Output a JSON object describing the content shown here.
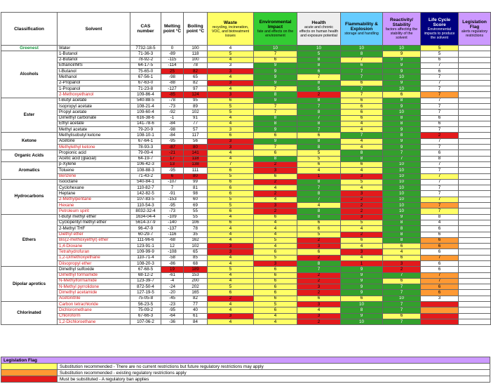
{
  "headers": {
    "classification": "Classification",
    "solvent": "Solvent",
    "cas": "CAS number",
    "mp": "Melting point °C",
    "bp": "Boiling point °C",
    "waste": {
      "title": "Waste",
      "sub": "recycling, incineration, VOC, and biotreatment issues"
    },
    "env": {
      "title": "Environmental Impact",
      "sub": "fate and effects on the environment"
    },
    "health": {
      "title": "Health",
      "sub": "acute and chronic effects on human health and exposure potential"
    },
    "flam": {
      "title": "Flammability & Explosion",
      "sub": "storage and handling"
    },
    "react": {
      "title": "Reactivity/ Stability",
      "sub": "factors affecting the stability of the solvent"
    },
    "life": {
      "title": "Life Cycle Score",
      "sub": "Environmental impacts to produce the solvent"
    },
    "leg": {
      "title": "Legislation Flag",
      "sub": "alerts regulatory restrictions"
    }
  },
  "colors": {
    "red": "#e31a1c",
    "yellow": "#ffff66",
    "green": "#33a02c",
    "orange": "#ff9933",
    "purple": "#cc99ff",
    "navy": "#000080"
  },
  "groups": [
    {
      "name": "Greenest",
      "rows": [
        [
          "Water",
          "7732-18-5",
          "0",
          "100",
          "4",
          "10",
          "10",
          "10",
          "10",
          "5",
          "",
          "",
          "g",
          "g",
          "g",
          "g",
          "y",
          "w"
        ]
      ]
    },
    {
      "name": "Alcohols",
      "rows": [
        [
          "1-Butanol",
          "71-36-3",
          "-89",
          "118",
          "5",
          "7",
          "5",
          "8",
          "9",
          "5",
          "",
          "y",
          "y",
          "g",
          "g",
          "y",
          "w"
        ],
        [
          "2-Butanol",
          "78-92-2",
          "-115",
          "100",
          "4",
          "6",
          "8",
          "7",
          "9",
          "6",
          "",
          "y",
          "y",
          "g",
          "y",
          "g",
          "w"
        ],
        [
          "Ethanol/IMS",
          "64-17-5",
          "-114",
          "78",
          "3",
          "9",
          "8",
          "6",
          "9",
          "7",
          "",
          "w",
          "g",
          "g",
          "g",
          "g",
          "w"
        ],
        [
          "t-Butanol",
          "75-65-0",
          "25",
          "82",
          "3",
          "9",
          "6",
          "7",
          "9",
          "6",
          "r",
          "r",
          "g",
          "g",
          "g",
          "g",
          "w"
        ],
        [
          "Methanol",
          "67-56-1",
          "-98",
          "65",
          "4",
          "9",
          "7",
          "7",
          "10",
          "7",
          "",
          "y",
          "g",
          "y",
          "g",
          "g",
          "w"
        ],
        [
          "2-Propanol",
          "67-63-0",
          "-88",
          "82",
          "3",
          "9",
          "8",
          "6",
          "9",
          "7",
          "",
          "r",
          "g",
          "g",
          "y",
          "g",
          "w"
        ],
        [
          "1-Propanol",
          "71-23-8",
          "-127",
          "97",
          "4",
          "7",
          "5",
          "7",
          "10",
          "7",
          "",
          "y",
          "y",
          "g",
          "g",
          "g",
          "w"
        ],
        [
          "2-Methoxyethanol",
          "109-86-4",
          "-85",
          "124",
          "3",
          "8",
          "2",
          "7",
          "6",
          "7",
          "r",
          "r",
          "g",
          "r",
          "y",
          "y",
          "o"
        ]
      ]
    },
    {
      "name": "Ester",
      "rows": [
        [
          "t-Butyl acetate",
          "540-88-5",
          "-78",
          "95",
          "6",
          "9",
          "8",
          "6",
          "8",
          "7",
          "",
          "y",
          "g",
          "g",
          "y",
          "g",
          "w"
        ],
        [
          "Isopropyl acetate",
          "108-21-4",
          "-73",
          "89",
          "5",
          "7",
          "7",
          "6",
          "9",
          "7",
          "",
          "y",
          "y",
          "g",
          "y",
          "g",
          "w"
        ],
        [
          "Propyl acetate",
          "109-60-4",
          "-92",
          "102",
          "5",
          "7",
          "8",
          "6",
          "10",
          "7",
          "",
          "y",
          "y",
          "g",
          "y",
          "g",
          "w"
        ],
        [
          "Dimethyl carbonate",
          "616-38-6",
          "-1",
          "91",
          "4",
          "8",
          "7",
          "6",
          "8",
          "6",
          "",
          "y",
          "g",
          "g",
          "y",
          "g",
          "w"
        ],
        [
          "Ethyl acetate",
          "141-78-6",
          "-84",
          "77",
          "4",
          "8",
          "8",
          "4",
          "8",
          "6",
          "",
          "y",
          "g",
          "g",
          "y",
          "g",
          "w"
        ],
        [
          "Methyl acetate",
          "79-20-9",
          "-98",
          "57",
          "3",
          "9",
          "7",
          "4",
          "9",
          "7",
          "",
          "y",
          "g",
          "g",
          "y",
          "g",
          "w"
        ]
      ]
    },
    {
      "name": "Ketone",
      "rows": [
        [
          "Methylisobutyl ketone",
          "108-10-1",
          "-84",
          "117",
          "6",
          "6",
          "6",
          "7",
          "8",
          "2",
          "",
          "y",
          "y",
          "y",
          "g",
          "g",
          "r"
        ],
        [
          "Acetone",
          "67-64-1",
          "-95",
          "56",
          "3",
          "9",
          "8",
          "4",
          "9",
          "7",
          "",
          "r",
          "g",
          "g",
          "y",
          "g",
          "w"
        ],
        [
          "Methylethyl ketone",
          "78-93-3",
          "-87",
          "80",
          "3",
          "7",
          "8",
          "4",
          "9",
          "7",
          "r",
          "r",
          "y",
          "g",
          "y",
          "g",
          "w"
        ]
      ]
    },
    {
      "name": "Organic Acids",
      "rows": [
        [
          "Propionic acid",
          "79-09-4",
          "-21",
          "141",
          "4",
          "6",
          "5",
          "8",
          "7",
          "6",
          "r",
          "y",
          "y",
          "y",
          "g",
          "g",
          "w"
        ],
        [
          "Acetic acid (glacial)",
          "64-19-7",
          "17",
          "118",
          "4",
          "8",
          "5",
          "8",
          "7",
          "8",
          "r",
          "y",
          "g",
          "y",
          "g",
          "g",
          "w"
        ]
      ]
    },
    {
      "name": "Aromatics",
      "rows": [
        [
          "p-Xylene",
          "106-42-3",
          "13",
          "138",
          "7",
          "2",
          "6",
          "6",
          "10",
          "7",
          "r",
          "y",
          "r",
          "y",
          "y",
          "g",
          "w"
        ],
        [
          "Toluene",
          "108-88-3",
          "-95",
          "111",
          "6",
          "3",
          "4",
          "4",
          "10",
          "7",
          "",
          "y",
          "r",
          "y",
          "y",
          "g",
          "w"
        ],
        [
          "Benzene",
          "71-43-2",
          "6",
          "80",
          "5",
          "6",
          "1",
          "3",
          "10",
          "7",
          "r",
          "y",
          "y",
          "r",
          "r",
          "g",
          "y"
        ]
      ]
    },
    {
      "name": "Hydrocarbons",
      "rows": [
        [
          "Isooctane",
          "540-84-1",
          "-107",
          "99",
          "6",
          "2",
          "8",
          "5",
          "10",
          "7",
          "",
          "y",
          "r",
          "g",
          "y",
          "g",
          "w"
        ],
        [
          "Cyclohexane",
          "110-82-7",
          "7",
          "81",
          "6",
          "4",
          "7",
          "4",
          "10",
          "7",
          "",
          "y",
          "y",
          "g",
          "y",
          "g",
          "w"
        ],
        [
          "Heptane",
          "142-82-5",
          "-91",
          "98",
          "6",
          "2",
          "8",
          "3",
          "10",
          "7",
          "",
          "y",
          "r",
          "g",
          "r",
          "g",
          "w"
        ],
        [
          "2-Methylpentane",
          "107-83-5",
          "-153",
          "60",
          "5",
          "4",
          "7",
          "2",
          "10",
          "7",
          "",
          "y",
          "y",
          "g",
          "r",
          "g",
          "y"
        ],
        [
          "Hexane",
          "110-54-3",
          "-95",
          "69",
          "5",
          "3",
          "4",
          "2",
          "10",
          "7",
          "",
          "y",
          "r",
          "y",
          "r",
          "g",
          "o"
        ],
        [
          "Petroleum spirit",
          "8032-32-4",
          "-73",
          "55",
          "6",
          "2",
          "8",
          "2",
          "10",
          "7",
          "",
          "y",
          "r",
          "g",
          "r",
          "g",
          "y"
        ]
      ]
    },
    {
      "name": "Ethers",
      "rows": [
        [
          "t-Butyl methyl ether",
          "1634-04-4",
          "-109",
          "55",
          "4",
          "6",
          "8",
          "3",
          "9",
          "8",
          "",
          "y",
          "y",
          "g",
          "r",
          "g",
          "w"
        ],
        [
          "Cyclopentyl methyl ether",
          "5614-37-9",
          "-140",
          "106",
          "6",
          "4",
          "6",
          "5",
          "8",
          "4",
          "",
          "y",
          "y",
          "y",
          "y",
          "g",
          "w"
        ],
        [
          "2-Methyl THF",
          "96-47-9",
          "-137",
          "78",
          "4",
          "4",
          "6",
          "4",
          "8",
          "6",
          "",
          "y",
          "y",
          "y",
          "y",
          "g",
          "w"
        ],
        [
          "Diethyl ether",
          "60-29-7",
          "-116",
          "35",
          "4",
          "4",
          "5",
          "2",
          "8",
          "6",
          "",
          "y",
          "y",
          "y",
          "r",
          "g",
          "w"
        ],
        [
          "Bis(2-methoxyethyl) ether",
          "111-96-6",
          "-68",
          "162",
          "4",
          "5",
          "2",
          "6",
          "8",
          "6",
          "",
          "y",
          "y",
          "r",
          "y",
          "g",
          "o"
        ],
        [
          "1,4-Dioxane",
          "123-91-1",
          "12",
          "102",
          "3",
          "4",
          "3",
          "4",
          "6",
          "6",
          "",
          "r",
          "y",
          "r",
          "y",
          "y",
          "o"
        ],
        [
          "Tetrahydrofuran",
          "109-99-9",
          "-108",
          "65",
          "3",
          "6",
          "6",
          "3",
          "4",
          "6",
          "",
          "r",
          "y",
          "y",
          "r",
          "y",
          "w"
        ],
        [
          "1,2-Dimethoxyethane",
          "110-71-4",
          "-58",
          "85",
          "4",
          "5",
          "2",
          "4",
          "6",
          "7",
          "",
          "y",
          "y",
          "r",
          "y",
          "y",
          "o"
        ],
        [
          "Diisopropyl ether",
          "108-20-3",
          "-86",
          "68",
          "4",
          "3",
          "8",
          "1",
          "3",
          "6",
          "",
          "y",
          "r",
          "g",
          "r",
          "r",
          "w"
        ]
      ]
    },
    {
      "name": "Dipolar aprotics",
      "rows": [
        [
          "Dimethyl sulfoxide",
          "67-68-5",
          "19",
          "189",
          "5",
          "6",
          "7",
          "9",
          "2",
          "6",
          "r",
          "y",
          "y",
          "g",
          "g",
          "r",
          "w"
        ],
        [
          "Dimethyl formamide",
          "68-12-2",
          "-61",
          "153",
          "4",
          "6",
          "2",
          "9",
          "7",
          "7",
          "",
          "y",
          "y",
          "r",
          "g",
          "g",
          "o"
        ],
        [
          "N-Methylformamide",
          "123-39-7",
          "-4",
          "200",
          "4",
          "6",
          "2",
          "9",
          "6",
          "7",
          "",
          "y",
          "y",
          "r",
          "g",
          "y",
          "o"
        ],
        [
          "N-Methyl pyrrolidone",
          "872-50-4",
          "-24",
          "202",
          "5",
          "6",
          "3",
          "9",
          "7",
          "6",
          "",
          "y",
          "y",
          "r",
          "g",
          "g",
          "o"
        ],
        [
          "Dimethyl acetamide",
          "127-19-5",
          "-20",
          "165",
          "6",
          "6",
          "2",
          "9",
          "7",
          "6",
          "",
          "y",
          "y",
          "r",
          "g",
          "g",
          "o"
        ],
        [
          "Acetonitrile",
          "75-05-8",
          "-45",
          "82",
          "2",
          "6",
          "6",
          "6",
          "10",
          "3",
          "",
          "r",
          "y",
          "y",
          "y",
          "g",
          "w"
        ]
      ]
    },
    {
      "name": "Chlorinated",
      "rows": [
        [
          "Carbon tetrachloride",
          "56-23-5",
          "-23",
          "77",
          "4",
          "5",
          "3",
          "10",
          "7",
          "",
          "",
          "y",
          "y",
          "r",
          "g",
          "g",
          "r"
        ],
        [
          "Dichloromethane",
          "75-09-2",
          "-95",
          "40",
          "4",
          "6",
          "4",
          "8",
          "7",
          "",
          "",
          "y",
          "y",
          "y",
          "g",
          "g",
          "o"
        ],
        [
          "Chloroform",
          "67-66-3",
          "-64",
          "61",
          "3",
          "4",
          "3",
          "9",
          "6",
          "",
          "",
          "r",
          "y",
          "r",
          "g",
          "y",
          "r"
        ],
        [
          "1,2-Dichloroethane",
          "107-06-2",
          "-36",
          "84",
          "4",
          "4",
          "2",
          "10",
          "7",
          "",
          "",
          "y",
          "y",
          "r",
          "g",
          "g",
          "r"
        ]
      ]
    }
  ],
  "red_names": [
    "2-Methoxyethanol",
    "Methylethyl ketone",
    "Benzene",
    "2-Methylpentane",
    "Hexane",
    "Petroleum spirit",
    "Diethyl ether",
    "Bis(2-methoxyethyl) ether",
    "1,4-Dioxane",
    "Tetrahydrofuran",
    "1,2-Dimethoxyethane",
    "Diisopropyl ether",
    "Dimethyl formamide",
    "N-Methylformamide",
    "N-Methyl pyrrolidone",
    "Dimethyl acetamide",
    "Acetonitrile",
    "Carbon tetrachloride",
    "Dichloromethane",
    "Chloroform",
    "1,2-Dichloroethane"
  ],
  "legend": {
    "title": "Legislation Flag",
    "items": [
      {
        "color": "yellow",
        "text": "Substitution recommended - There are no current restrictions but future regulatory restrictions may apply"
      },
      {
        "color": "orange",
        "text": "Substitution recommended - existing regulatory restrictions apply"
      },
      {
        "color": "red",
        "text": "Must be substituted - A regulatory ban applies"
      }
    ]
  }
}
